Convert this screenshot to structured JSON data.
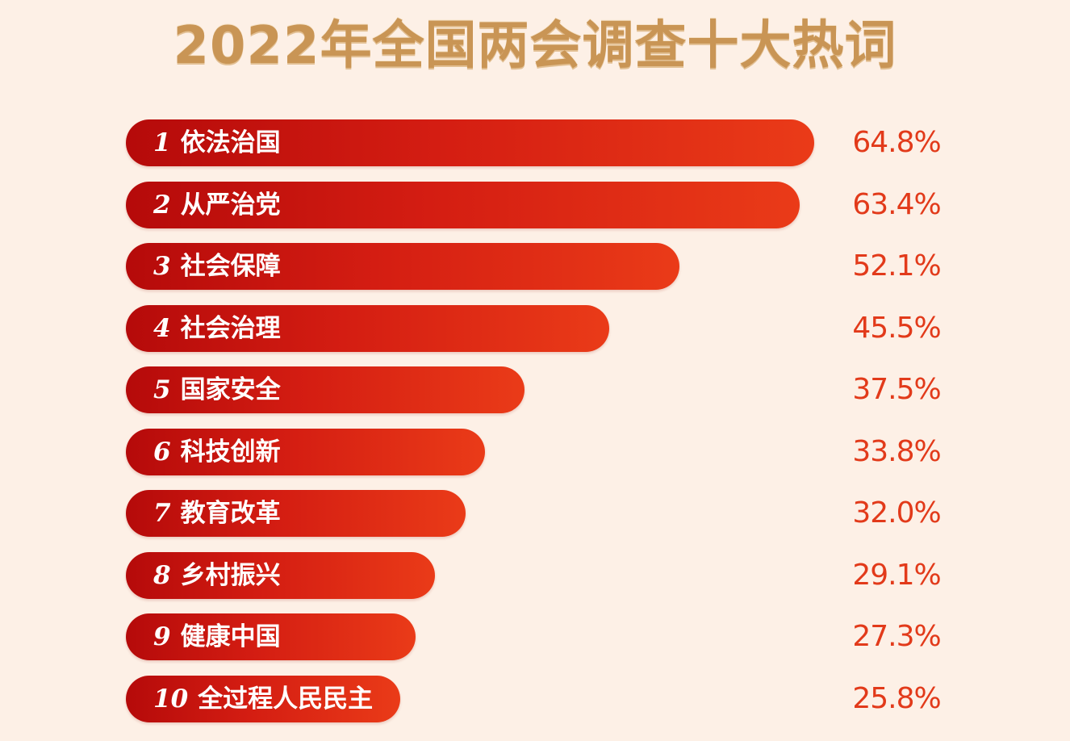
{
  "chart_data": {
    "type": "bar",
    "orientation": "horizontal",
    "title": "2022年全国两会调查十大热词",
    "xlabel": "",
    "ylabel": "",
    "ranks": [
      "1",
      "2",
      "3",
      "4",
      "5",
      "6",
      "7",
      "8",
      "9",
      "10"
    ],
    "categories": [
      "依法治国",
      "从严治党",
      "社会保障",
      "社会治理",
      "国家安全",
      "科技创新",
      "教育改革",
      "乡村振兴",
      "健康中国",
      "全过程人民民主"
    ],
    "values": [
      64.8,
      63.4,
      52.1,
      45.5,
      37.5,
      33.8,
      32.0,
      29.1,
      27.3,
      25.8
    ],
    "value_labels": [
      "64.8%",
      "63.4%",
      "52.1%",
      "45.5%",
      "37.5%",
      "33.8%",
      "32.0%",
      "29.1%",
      "27.3%",
      "25.8%"
    ],
    "xlim": [
      0,
      64.8
    ],
    "grid": false,
    "legend": "none",
    "colors": {
      "bar_start": "#b50a0a",
      "bar_end": "#ea3b18",
      "value_text": "#e23a1a",
      "title_text": "#c99555",
      "background": "#fdf0e6"
    }
  }
}
